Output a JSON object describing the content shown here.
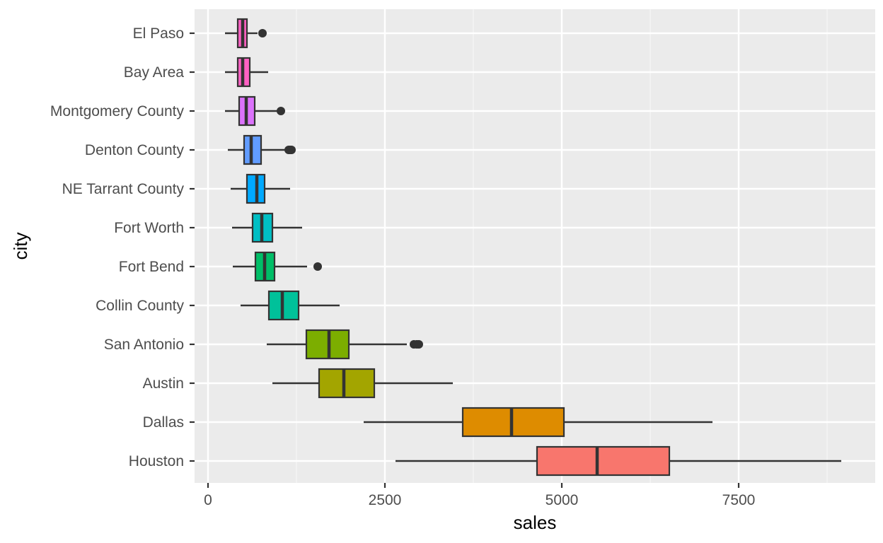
{
  "chart_data": {
    "type": "boxplot",
    "orientation": "horizontal",
    "title": "",
    "xlabel": "sales",
    "ylabel": "city",
    "xlim": [
      -100,
      9100
    ],
    "xticks": [
      0,
      2500,
      5000,
      7500
    ],
    "xtick_labels": [
      "0",
      "2500",
      "5000",
      "7500"
    ],
    "grid": true,
    "legend": "none",
    "categories_top_to_bottom": [
      "El Paso",
      "Bay Area",
      "Montgomery County",
      "Denton County",
      "NE Tarrant County",
      "Fort Worth",
      "Fort Bend",
      "Collin County",
      "San Antonio",
      "Austin",
      "Dallas",
      "Houston"
    ],
    "boxes": [
      {
        "city": "El Paso",
        "whisker_low": 240,
        "q1": 420,
        "median": 490,
        "q3": 550,
        "whisker_high": 700,
        "outliers": [
          770
        ],
        "color": "#FF61C3"
      },
      {
        "city": "Bay Area",
        "whisker_low": 240,
        "q1": 420,
        "median": 490,
        "q3": 590,
        "whisker_high": 850,
        "outliers": [],
        "color": "#FF61C3"
      },
      {
        "city": "Montgomery County",
        "whisker_low": 240,
        "q1": 440,
        "median": 540,
        "q3": 660,
        "whisker_high": 980,
        "outliers": [
          1030
        ],
        "color": "#DB72FB"
      },
      {
        "city": "Denton County",
        "whisker_low": 280,
        "q1": 510,
        "median": 610,
        "q3": 750,
        "whisker_high": 1100,
        "outliers": [
          1140,
          1160,
          1180
        ],
        "color": "#619CFF"
      },
      {
        "city": "NE Tarrant County",
        "whisker_low": 320,
        "q1": 550,
        "median": 690,
        "q3": 800,
        "whisker_high": 1160,
        "outliers": [],
        "color": "#00A9FF"
      },
      {
        "city": "Fort Worth",
        "whisker_low": 340,
        "q1": 630,
        "median": 760,
        "q3": 910,
        "whisker_high": 1330,
        "outliers": [],
        "color": "#00BFC4"
      },
      {
        "city": "Fort Bend",
        "whisker_low": 350,
        "q1": 670,
        "median": 800,
        "q3": 940,
        "whisker_high": 1400,
        "outliers": [
          1550
        ],
        "color": "#00BE67"
      },
      {
        "city": "Collin County",
        "whisker_low": 460,
        "q1": 860,
        "median": 1050,
        "q3": 1280,
        "whisker_high": 1860,
        "outliers": [],
        "color": "#00C19A"
      },
      {
        "city": "San Antonio",
        "whisker_low": 830,
        "q1": 1390,
        "median": 1710,
        "q3": 1990,
        "whisker_high": 2810,
        "outliers": [
          2910,
          2950,
          2980
        ],
        "color": "#7CAE00"
      },
      {
        "city": "Austin",
        "whisker_low": 910,
        "q1": 1570,
        "median": 1920,
        "q3": 2350,
        "whisker_high": 3460,
        "outliers": [],
        "color": "#A3A500"
      },
      {
        "city": "Dallas",
        "whisker_low": 2200,
        "q1": 3600,
        "median": 4290,
        "q3": 5030,
        "whisker_high": 7130,
        "outliers": [],
        "color": "#DE8C00"
      },
      {
        "city": "Houston",
        "whisker_low": 2650,
        "q1": 4650,
        "median": 5500,
        "q3": 6520,
        "whisker_high": 8950,
        "outliers": [],
        "color": "#F8766D"
      }
    ]
  }
}
